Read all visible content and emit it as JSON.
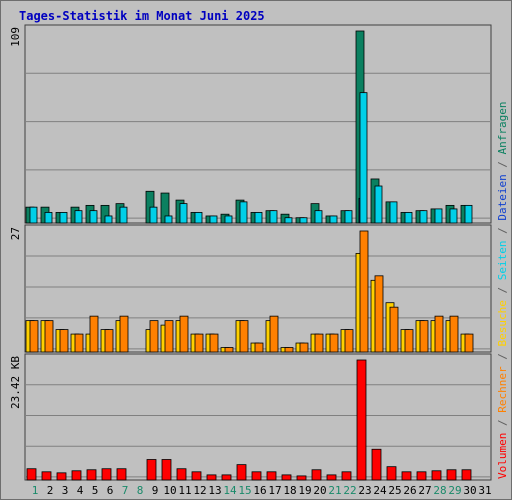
{
  "chart_data": {
    "type": "bar",
    "title": "Tages-Statistik im Monat Juni 2025",
    "x": [
      "1",
      "2",
      "3",
      "4",
      "5",
      "6",
      "7",
      "8",
      "9",
      "10",
      "11",
      "12",
      "13",
      "14",
      "15",
      "16",
      "17",
      "18",
      "19",
      "20",
      "21",
      "22",
      "23",
      "24",
      "25",
      "26",
      "27",
      "28",
      "29",
      "30",
      "31"
    ],
    "weekend_days": [
      "1",
      "7",
      "8",
      "14",
      "15",
      "21",
      "22",
      "28",
      "29"
    ],
    "panels": [
      {
        "name": "top",
        "scale_label": "109",
        "ymax": 109,
        "series": [
          {
            "name": "Anfragen",
            "color": "#0b8060",
            "values": [
              9,
              9,
              6,
              9,
              10,
              10,
              11,
              0,
              18,
              17,
              13,
              6,
              4,
              5,
              13,
              6,
              7,
              5,
              3,
              11,
              4,
              7,
              109,
              25,
              12,
              6,
              7,
              8,
              10,
              10,
              0
            ]
          },
          {
            "name": "Dateien",
            "color": "#1040d0",
            "values": [
              0,
              0,
              0,
              0,
              0,
              0,
              0,
              0,
              0,
              0,
              0,
              0,
              0,
              0,
              0,
              0,
              0,
              0,
              0,
              0,
              0,
              0,
              14,
              0,
              0,
              0,
              0,
              0,
              0,
              0,
              0
            ]
          },
          {
            "name": "Seiten",
            "color": "#00d0e8",
            "values": [
              9,
              6,
              6,
              7,
              7,
              4,
              9,
              0,
              9,
              4,
              11,
              6,
              4,
              4,
              12,
              6,
              7,
              3,
              3,
              7,
              4,
              7,
              74,
              21,
              12,
              6,
              7,
              8,
              8,
              10,
              0
            ]
          }
        ]
      },
      {
        "name": "middle",
        "scale_label": "27",
        "ymax": 27,
        "series": [
          {
            "name": "Besuche",
            "color": "#ffd000",
            "values": [
              7,
              7,
              5,
              4,
              4,
              5,
              7,
              0,
              5,
              6,
              7,
              4,
              4,
              1,
              7,
              2,
              7,
              1,
              2,
              4,
              4,
              5,
              22,
              16,
              11,
              5,
              7,
              7,
              7,
              4,
              0
            ]
          },
          {
            "name": "Rechner",
            "color": "#ff8000",
            "values": [
              7,
              7,
              5,
              4,
              8,
              5,
              8,
              0,
              7,
              7,
              8,
              4,
              4,
              1,
              7,
              2,
              8,
              1,
              2,
              4,
              4,
              5,
              27,
              17,
              10,
              5,
              7,
              8,
              8,
              4,
              0
            ]
          }
        ]
      },
      {
        "name": "bottom",
        "scale_label": "23.42 KB",
        "ymax": 23.42,
        "series": [
          {
            "name": "Volumen",
            "color": "#ff0000",
            "values": [
              2.2,
              1.6,
              1.4,
              1.8,
              2.0,
              2.2,
              2.2,
              0,
              4.0,
              4.0,
              2.2,
              1.6,
              1.0,
              1.0,
              3.0,
              1.6,
              1.6,
              1.0,
              0.8,
              2.0,
              1.0,
              1.6,
              23.42,
              6.0,
              2.6,
              1.6,
              1.6,
              1.8,
              2.0,
              2.0,
              0
            ]
          }
        ]
      }
    ],
    "legend": {
      "placement": "right",
      "items": [
        {
          "name": "Volumen",
          "color": "#ff0000"
        },
        {
          "name": "Rechner",
          "color": "#ff8000"
        },
        {
          "name": "Besuche",
          "color": "#ffd000"
        },
        {
          "name": "Seiten",
          "color": "#00d0e8"
        },
        {
          "name": "Dateien",
          "color": "#1040d0"
        },
        {
          "name": "Anfragen",
          "color": "#0b8060"
        }
      ],
      "separator": "/"
    },
    "colors": {
      "title": "#0000c0",
      "weekday_label": "#000000",
      "weekend_label": "#1a8a6a",
      "separator": "#606060",
      "panel_bg": "#c0c0c0",
      "grid": "#808080",
      "border": "#404040"
    }
  }
}
